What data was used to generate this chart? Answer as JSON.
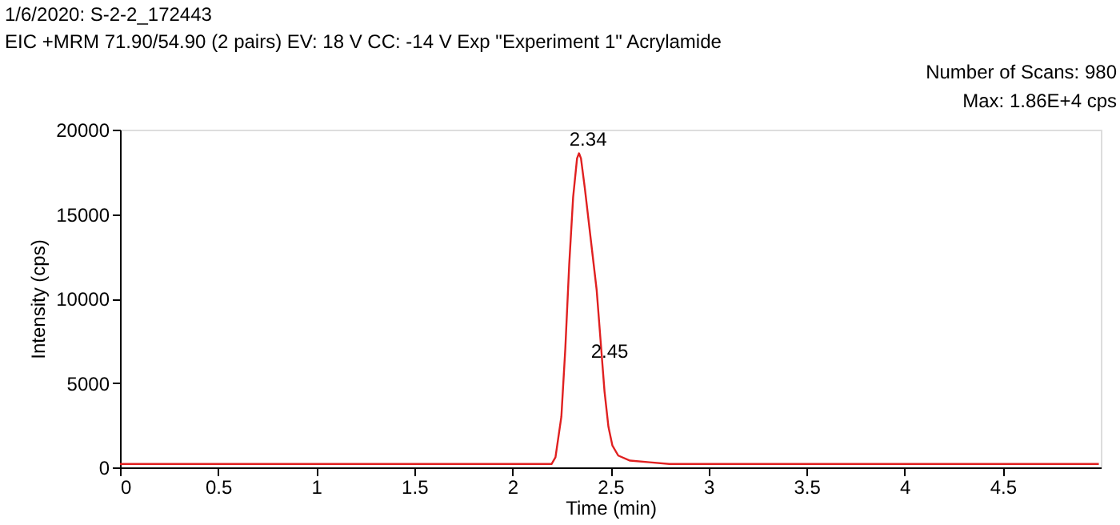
{
  "chart_data": {
    "type": "line",
    "title": "1/6/2020: S-2-2_172443",
    "subtitle": "EIC +MRM 71.90/54.90 (2 pairs) EV: 18 V CC: -14 V Exp \"Experiment 1\" Acrylamide",
    "xlabel": "Time (min)",
    "ylabel": "Intensity (cps)",
    "xlim": [
      0,
      5
    ],
    "xticks": [
      0,
      0.5,
      1,
      1.5,
      2,
      2.5,
      3,
      3.5,
      4,
      4.5
    ],
    "ylim": [
      0,
      20000
    ],
    "yticks": [
      0,
      5000,
      10000,
      15000,
      20000
    ],
    "grid": false,
    "marker": "none",
    "line_style": "solid",
    "annotations": [
      "Number of Scans: 980",
      "Max: 1.86E+4 cps",
      {
        "text": "2.34",
        "x": 2.34,
        "y": 18600
      },
      {
        "text": "2.45",
        "x": 2.45,
        "y": 6000
      }
    ],
    "series": [
      {
        "color": "#e02020",
        "x": [
          0,
          0.1,
          0.2,
          0.3,
          0.4,
          0.5,
          0.6,
          0.7,
          0.8,
          0.9,
          1.0,
          1.1,
          1.2,
          1.3,
          1.4,
          1.5,
          1.6,
          1.7,
          1.8,
          1.9,
          2.0,
          2.1,
          2.2,
          2.22,
          2.25,
          2.27,
          2.29,
          2.31,
          2.33,
          2.34,
          2.35,
          2.37,
          2.39,
          2.41,
          2.43,
          2.45,
          2.47,
          2.49,
          2.51,
          2.54,
          2.6,
          2.7,
          2.8,
          2.9,
          3.0,
          3.2,
          3.4,
          3.6,
          3.8,
          4.0,
          4.2,
          4.4,
          4.6,
          4.8,
          4.99
        ],
        "values": [
          200,
          200,
          200,
          200,
          200,
          200,
          200,
          200,
          200,
          200,
          200,
          200,
          200,
          200,
          200,
          200,
          200,
          200,
          200,
          200,
          200,
          200,
          200,
          600,
          3000,
          7000,
          12000,
          16000,
          18300,
          18600,
          18300,
          16500,
          14500,
          12500,
          10500,
          7500,
          4500,
          2400,
          1300,
          700,
          400,
          300,
          200,
          200,
          200,
          200,
          200,
          200,
          200,
          200,
          200,
          200,
          200,
          200,
          200
        ]
      }
    ]
  }
}
